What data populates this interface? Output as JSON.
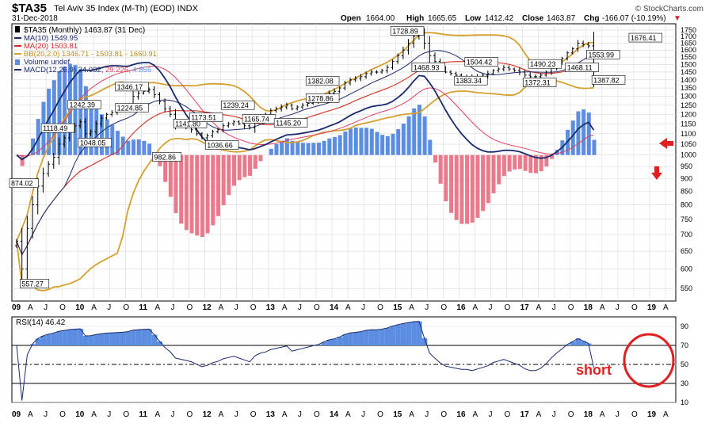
{
  "header": {
    "symbol": "$TA35",
    "name": "Tel Aviv 35 Index (M-Th) (EOD)  INDX",
    "date": "31-Dec-2018",
    "open_label": "Open",
    "open": "1664.00",
    "high_label": "High",
    "high": "1665.65",
    "low_label": "Low",
    "low": "1412.42",
    "close_label": "Close",
    "close": "1463.87",
    "chg_label": "Chg",
    "chg": "-166.07 (-10.19%)",
    "chg_arrow": "▼",
    "brand": "© StockCharts.com"
  },
  "legend": {
    "price": "$TA35 (Monthly) 1463.87 (31 Dec)",
    "ma10": "MA(10) 1549.95",
    "ma20": "MA(20) 1503.81",
    "bb": "BB(20,2.0) 1346.71 - 1503.81 - 1660.91",
    "volume": "Volume undef",
    "macd_label": "MACD(12,26,9)",
    "macd_v1": "34.082,",
    "macd_v2": "29.226,",
    "macd_v3": "4.856"
  },
  "rsi_panel": {
    "label": "RSI(14) 46.42",
    "annotation": "short"
  },
  "colors": {
    "price_bars": "#000000",
    "ma10": "#1b2a6b",
    "ma20": "#d42a2a",
    "bollinger": "#d4a030",
    "macd": "#1b2a6b",
    "signal": "#e04060",
    "hist_pos": "#5b8ee0",
    "hist_neg": "#e87a8c",
    "rsi_line": "#1b2a6b",
    "annotation_red": "#e02020",
    "grid": "#d9d9d9"
  },
  "chart_data": [
    {
      "type": "ohlc",
      "title": "$TA35 Tel Aviv 35 Index (Monthly)",
      "y_scale": "log",
      "ylim": [
        520,
        1800
      ],
      "y_ticks": [
        550,
        600,
        650,
        700,
        750,
        800,
        850,
        900,
        950,
        1000,
        1050,
        1100,
        1150,
        1200,
        1250,
        1300,
        1350,
        1400,
        1450,
        1500,
        1550,
        1600,
        1650,
        1700,
        1750
      ],
      "x_tick_labels": [
        "09",
        "A",
        "J",
        "O",
        "10",
        "A",
        "J",
        "O",
        "11",
        "A",
        "J",
        "O",
        "12",
        "A",
        "J",
        "O",
        "13",
        "A",
        "J",
        "O",
        "14",
        "A",
        "J",
        "O",
        "15",
        "A",
        "J",
        "O",
        "16",
        "A",
        "J",
        "O",
        "17",
        "A",
        "J",
        "O",
        "18",
        "A",
        "J",
        "O",
        "19",
        "A"
      ],
      "price_annotations": [
        "874.02",
        "557.27",
        "1118.49",
        "1242.39",
        "1048.05",
        "1346.17",
        "1224.85",
        "982.86",
        "1141.80",
        "1173.51",
        "1036.66",
        "1239.24",
        "1165.74",
        "1145.20",
        "1382.08",
        "1278.86",
        "1728.89",
        "1468.93",
        "1504.42",
        "1383.34",
        "1490.23",
        "1372.31",
        "1468.11",
        "1553.99",
        "1387.82",
        "1676.41"
      ],
      "close_approx": [
        680,
        600,
        720,
        800,
        870,
        920,
        960,
        990,
        1050,
        1080,
        1120,
        1140,
        1160,
        1100,
        1110,
        1150,
        1180,
        1200,
        1210,
        1220,
        1230,
        1250,
        1300,
        1320,
        1330,
        1340,
        1310,
        1270,
        1230,
        1200,
        1150,
        1140,
        1130,
        1120,
        1100,
        1080,
        1090,
        1110,
        1120,
        1140,
        1150,
        1160,
        1150,
        1140,
        1130,
        1170,
        1190,
        1200,
        1220,
        1230,
        1240,
        1250,
        1230,
        1240,
        1250,
        1260,
        1270,
        1280,
        1300,
        1320,
        1330,
        1350,
        1380,
        1400,
        1410,
        1420,
        1440,
        1450,
        1450,
        1460,
        1480,
        1520,
        1560,
        1600,
        1650,
        1700,
        1720,
        1650,
        1560,
        1520,
        1480,
        1450,
        1440,
        1430,
        1420,
        1420,
        1410,
        1420,
        1430,
        1440,
        1460,
        1470,
        1480,
        1470,
        1460,
        1450,
        1430,
        1420,
        1420,
        1430,
        1450,
        1480,
        1510,
        1540,
        1580,
        1610,
        1650,
        1640,
        1630,
        1463.87
      ]
    },
    {
      "type": "line",
      "title": "RSI(14)",
      "ylim": [
        10,
        100
      ],
      "y_ticks": [
        10,
        30,
        50,
        70,
        90
      ],
      "overbought": 70,
      "oversold": 30,
      "midline": 50,
      "last_value": 46.42
    }
  ]
}
